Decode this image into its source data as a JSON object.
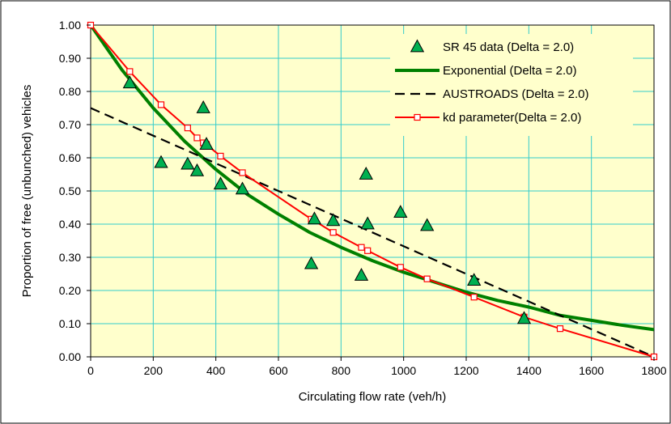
{
  "chart_data": {
    "type": "scatter",
    "title": "",
    "xlabel": "Circulating flow rate (veh/h)",
    "ylabel": "Proportion of free (unbunched) vehicles",
    "xlim": [
      0,
      1800
    ],
    "ylim": [
      0,
      1.0
    ],
    "x_ticks": [
      0,
      200,
      400,
      600,
      800,
      1000,
      1200,
      1400,
      1600,
      1800
    ],
    "y_ticks": [
      0.0,
      0.1,
      0.2,
      0.3,
      0.4,
      0.5,
      0.6,
      0.7,
      0.8,
      0.9,
      1.0
    ],
    "x_tick_labels": [
      "0",
      "200",
      "400",
      "600",
      "800",
      "1000",
      "1200",
      "1400",
      "1600",
      "1800"
    ],
    "y_tick_labels": [
      "0.00",
      "0.10",
      "0.20",
      "0.30",
      "0.40",
      "0.50",
      "0.60",
      "0.70",
      "0.80",
      "0.90",
      "1.00"
    ],
    "grid": true,
    "legend_position": "top-right",
    "colors": {
      "plot_background": "#FFFFCC",
      "grid": "#33CCCC",
      "frame": "#000000",
      "scatter": "#00B050",
      "exponential": "#008000",
      "austroads": "#000000",
      "kd": "#FF0000"
    },
    "series": [
      {
        "name": "SR 45 data (Delta = 2.0)",
        "type": "scatter",
        "marker": "triangle",
        "points": [
          [
            125,
            0.825
          ],
          [
            225,
            0.585
          ],
          [
            310,
            0.58
          ],
          [
            340,
            0.56
          ],
          [
            360,
            0.75
          ],
          [
            370,
            0.64
          ],
          [
            415,
            0.52
          ],
          [
            485,
            0.505
          ],
          [
            705,
            0.28
          ],
          [
            715,
            0.415
          ],
          [
            775,
            0.41
          ],
          [
            865,
            0.245
          ],
          [
            880,
            0.55
          ],
          [
            885,
            0.4
          ],
          [
            990,
            0.435
          ],
          [
            1075,
            0.395
          ],
          [
            1225,
            0.23
          ],
          [
            1385,
            0.115
          ]
        ]
      },
      {
        "name": "Exponential (Delta = 2.0)",
        "type": "line",
        "style": "solid-thick",
        "points": [
          [
            0,
            1.0
          ],
          [
            100,
            0.865
          ],
          [
            200,
            0.75
          ],
          [
            300,
            0.65
          ],
          [
            400,
            0.565
          ],
          [
            500,
            0.49
          ],
          [
            600,
            0.43
          ],
          [
            700,
            0.375
          ],
          [
            800,
            0.33
          ],
          [
            900,
            0.29
          ],
          [
            1000,
            0.255
          ],
          [
            1100,
            0.225
          ],
          [
            1200,
            0.195
          ],
          [
            1300,
            0.17
          ],
          [
            1400,
            0.15
          ],
          [
            1500,
            0.125
          ],
          [
            1600,
            0.11
          ],
          [
            1700,
            0.095
          ],
          [
            1800,
            0.082
          ]
        ]
      },
      {
        "name": "AUSTROADS (Delta = 2.0)",
        "type": "line",
        "style": "dashed",
        "points": [
          [
            0,
            0.75
          ],
          [
            1800,
            0.0
          ]
        ]
      },
      {
        "name": "kd parameter(Delta = 2.0)",
        "type": "line",
        "marker": "square",
        "points": [
          [
            0,
            1.0
          ],
          [
            125,
            0.86
          ],
          [
            225,
            0.76
          ],
          [
            310,
            0.69
          ],
          [
            340,
            0.66
          ],
          [
            360,
            0.645
          ],
          [
            370,
            0.64
          ],
          [
            415,
            0.605
          ],
          [
            485,
            0.555
          ],
          [
            705,
            0.415
          ],
          [
            715,
            0.41
          ],
          [
            775,
            0.375
          ],
          [
            865,
            0.33
          ],
          [
            885,
            0.32
          ],
          [
            990,
            0.27
          ],
          [
            1075,
            0.235
          ],
          [
            1225,
            0.18
          ],
          [
            1385,
            0.12
          ],
          [
            1500,
            0.085
          ],
          [
            1800,
            0.0
          ]
        ]
      }
    ]
  }
}
